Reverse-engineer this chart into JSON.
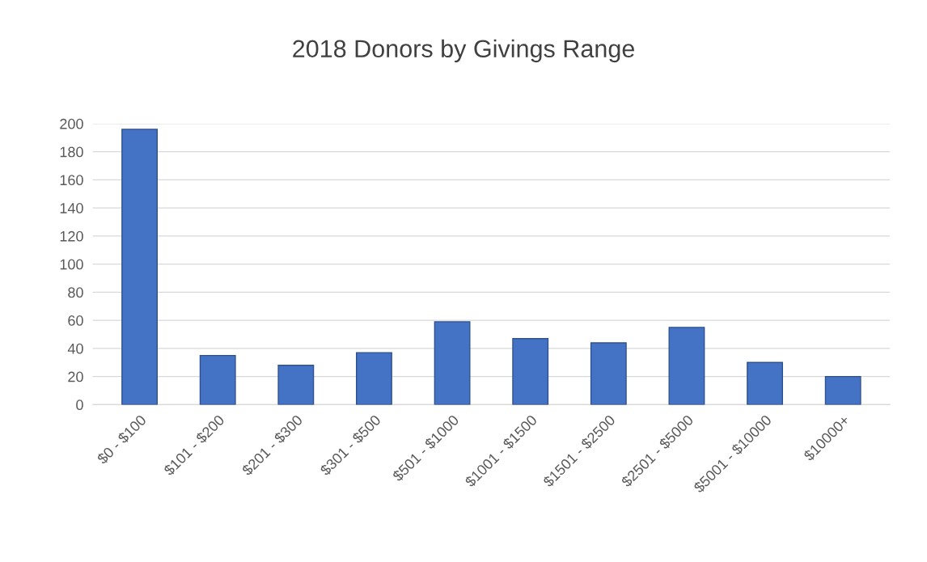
{
  "chart_data": {
    "type": "bar",
    "title": "2018 Donors by Givings Range",
    "categories": [
      "$0 - $100",
      "$101 - $200",
      "$201 - $300",
      "$301 - $500",
      "$501 - $1000",
      "$1001 - $1500",
      "$1501 - $2500",
      "$2501 - $5000",
      "$5001 - $10000",
      "$10000+"
    ],
    "values": [
      196,
      35,
      28,
      37,
      59,
      47,
      44,
      55,
      30,
      20
    ],
    "color": "#4472c4",
    "ylim": [
      0,
      200
    ],
    "yticks": [
      0,
      20,
      40,
      60,
      80,
      100,
      120,
      140,
      160,
      180,
      200
    ],
    "grid": "y"
  }
}
